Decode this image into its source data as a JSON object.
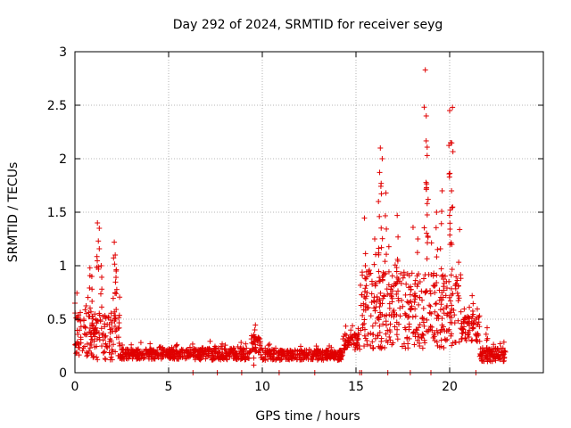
{
  "chart_data": {
    "type": "scatter",
    "title": "Day 292 of 2024, SRMTID for receiver seyg",
    "xlabel": "GPS time / hours",
    "ylabel": "SRMTID / TECUs",
    "xlim": [
      0,
      25
    ],
    "ylim": [
      0,
      3
    ],
    "xticks": [
      0,
      5,
      10,
      15,
      20
    ],
    "yticks": [
      0,
      0.5,
      1,
      1.5,
      2,
      2.5,
      3
    ],
    "ytick_labels": [
      "0",
      "0.5",
      "1",
      "1.5",
      "2",
      "2.5",
      "3"
    ],
    "grid": true,
    "marker": "+",
    "series": [
      {
        "name": "SRMTID",
        "color": "#e00000",
        "segments": [
          {
            "x_start": 0.0,
            "x_end": 2.4,
            "y_base": 0.32,
            "y_spread": 0.28
          },
          {
            "x_start": 2.4,
            "x_end": 6.3,
            "y_base": 0.17,
            "y_spread": 0.06
          },
          {
            "x_start": 6.3,
            "x_end": 9.4,
            "y_base": 0.17,
            "y_spread": 0.07
          },
          {
            "x_start": 9.4,
            "x_end": 9.9,
            "y_base": 0.26,
            "y_spread": 0.1
          },
          {
            "x_start": 9.9,
            "x_end": 14.3,
            "y_base": 0.16,
            "y_spread": 0.06
          },
          {
            "x_start": 14.3,
            "x_end": 15.2,
            "y_base": 0.28,
            "y_spread": 0.1
          },
          {
            "x_start": 15.2,
            "x_end": 20.6,
            "y_base": 0.55,
            "y_spread": 0.45
          },
          {
            "x_start": 20.6,
            "x_end": 21.6,
            "y_base": 0.4,
            "y_spread": 0.15
          },
          {
            "x_start": 21.6,
            "x_end": 23.0,
            "y_base": 0.16,
            "y_spread": 0.08
          }
        ],
        "peaks": [
          {
            "x": 0.0,
            "y": 0.65
          },
          {
            "x": 0.8,
            "y": 0.98
          },
          {
            "x": 0.9,
            "y": 0.9
          },
          {
            "x": 1.2,
            "y": 1.4
          },
          {
            "x": 1.3,
            "y": 1.35
          },
          {
            "x": 1.4,
            "y": 1.0
          },
          {
            "x": 2.1,
            "y": 1.22
          },
          {
            "x": 2.15,
            "y": 1.1
          },
          {
            "x": 2.2,
            "y": 0.95
          },
          {
            "x": 9.6,
            "y": 0.4
          },
          {
            "x": 15.5,
            "y": 1.0
          },
          {
            "x": 16.0,
            "y": 1.25
          },
          {
            "x": 16.2,
            "y": 1.6
          },
          {
            "x": 16.3,
            "y": 2.1
          },
          {
            "x": 16.4,
            "y": 2.0
          },
          {
            "x": 16.6,
            "y": 1.68
          },
          {
            "x": 17.2,
            "y": 1.47
          },
          {
            "x": 18.3,
            "y": 1.25
          },
          {
            "x": 18.7,
            "y": 2.83
          },
          {
            "x": 18.75,
            "y": 2.4
          },
          {
            "x": 18.8,
            "y": 2.03
          },
          {
            "x": 18.85,
            "y": 1.62
          },
          {
            "x": 19.3,
            "y": 1.5
          },
          {
            "x": 19.6,
            "y": 1.7
          },
          {
            "x": 20.0,
            "y": 2.45
          },
          {
            "x": 20.05,
            "y": 2.15
          },
          {
            "x": 20.1,
            "y": 1.7
          },
          {
            "x": 20.15,
            "y": 2.48
          },
          {
            "x": 21.2,
            "y": 0.72
          },
          {
            "x": 22.0,
            "y": 0.42
          }
        ],
        "zero_points": [
          6.3,
          7.6,
          8.9,
          10.9,
          12.8,
          15.2,
          15.3,
          16.7,
          17.9,
          19.0,
          21.4
        ]
      }
    ]
  }
}
